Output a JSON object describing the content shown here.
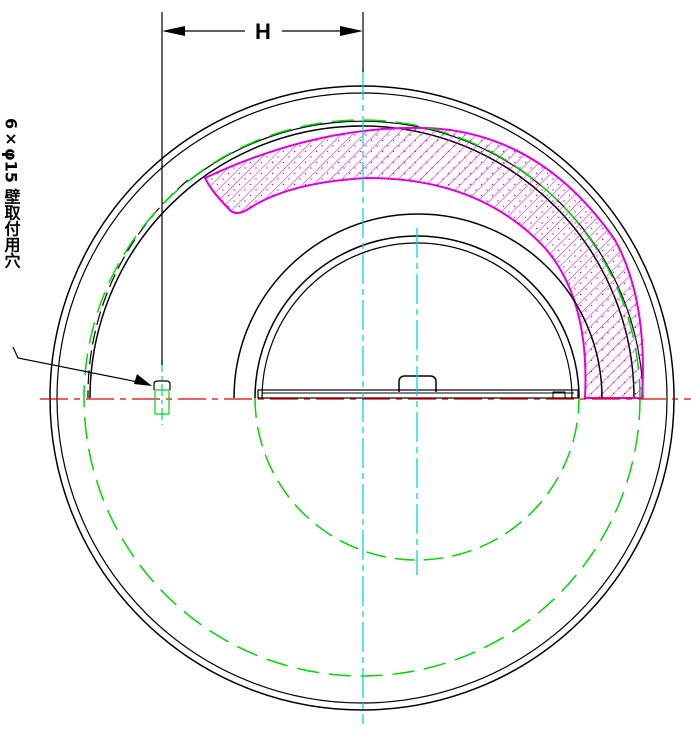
{
  "dimension": {
    "label": "H"
  },
  "callout": {
    "text": "6×φ15 壁取付用穴"
  },
  "colors": {
    "outline": "#000000",
    "centerline_vertical": "#00d8e0",
    "centerline_horizontal": "#e00000",
    "hidden_circle": "#00d800",
    "hatch": "#e000e0",
    "hole_marker": "#00d800"
  }
}
